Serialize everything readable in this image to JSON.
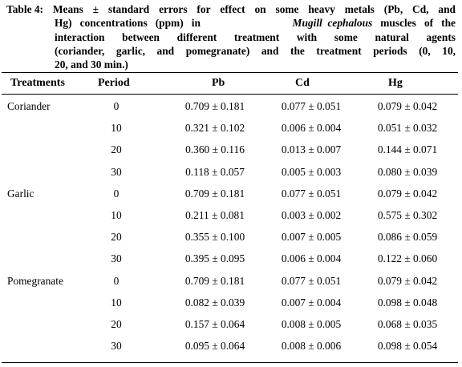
{
  "caption": {
    "line1": [
      "Table 4:",
      "Means",
      "±",
      "standard",
      "errors",
      "for",
      "effect",
      "on",
      "some",
      "heavy",
      "metals",
      "(Pb,",
      "Cd,",
      "and"
    ],
    "line2_pre": "Hg)   concentrations   (ppm)   in",
    "line2_em": "Mugill  cephalous",
    "line2_post": "muscles   of   the",
    "line3": "interaction between different treatment with some natural agents",
    "line4": "(coriander, garlic, and pomegranate) and the treatment periods (0, 10,",
    "line5": "20, and 30 min.)"
  },
  "header": {
    "treatments": "Treatments",
    "period": "Period",
    "pb": "Pb",
    "cd": "Cd",
    "hg": "Hg"
  },
  "rows": [
    {
      "treatment": "Coriander",
      "period": "0",
      "pb": "0.709 ± 0.181",
      "cd": "0.077 ± 0.051",
      "hg": "0.079 ± 0.042"
    },
    {
      "treatment": "",
      "period": "10",
      "pb": "0.321 ± 0.102",
      "cd": "0.006 ± 0.004",
      "hg": "0.051 ± 0.032"
    },
    {
      "treatment": "",
      "period": "20",
      "pb": "0.360 ± 0.116",
      "cd": "0.013 ± 0.007",
      "hg": "0.144 ± 0.071"
    },
    {
      "treatment": "",
      "period": "30",
      "pb": "0.118 ± 0.057",
      "cd": "0.005 ± 0.003",
      "hg": "0.080 ± 0.039"
    },
    {
      "treatment": "Garlic",
      "period": "0",
      "pb": "0.709 ± 0.181",
      "cd": "0.077 ± 0.051",
      "hg": "0.079 ± 0.042"
    },
    {
      "treatment": "",
      "period": "10",
      "pb": "0.211 ± 0.081",
      "cd": "0.003 ± 0.002",
      "hg": "0.575 ± 0.302"
    },
    {
      "treatment": "",
      "period": "20",
      "pb": "0.355 ± 0.100",
      "cd": "0.007 ± 0.005",
      "hg": "0.086 ± 0.059"
    },
    {
      "treatment": "",
      "period": "30",
      "pb": "0.395 ± 0.095",
      "cd": "0.006 ± 0.004",
      "hg": "0.122 ± 0.060"
    },
    {
      "treatment": "Pomegranate",
      "period": "0",
      "pb": "0.709 ± 0.181",
      "cd": "0.077 ± 0.051",
      "hg": "0.079 ± 0.042"
    },
    {
      "treatment": "",
      "period": "10",
      "pb": "0.082 ± 0.039",
      "cd": "0.007 ± 0.004",
      "hg": "0.098 ± 0.048"
    },
    {
      "treatment": "",
      "period": "20",
      "pb": "0.157 ± 0.064",
      "cd": "0.008 ± 0.005",
      "hg": "0.068 ± 0.035"
    },
    {
      "treatment": "",
      "period": "30",
      "pb": "0.095 ± 0.064",
      "cd": "0.008 ± 0.006",
      "hg": "0.098 ± 0.054"
    }
  ]
}
